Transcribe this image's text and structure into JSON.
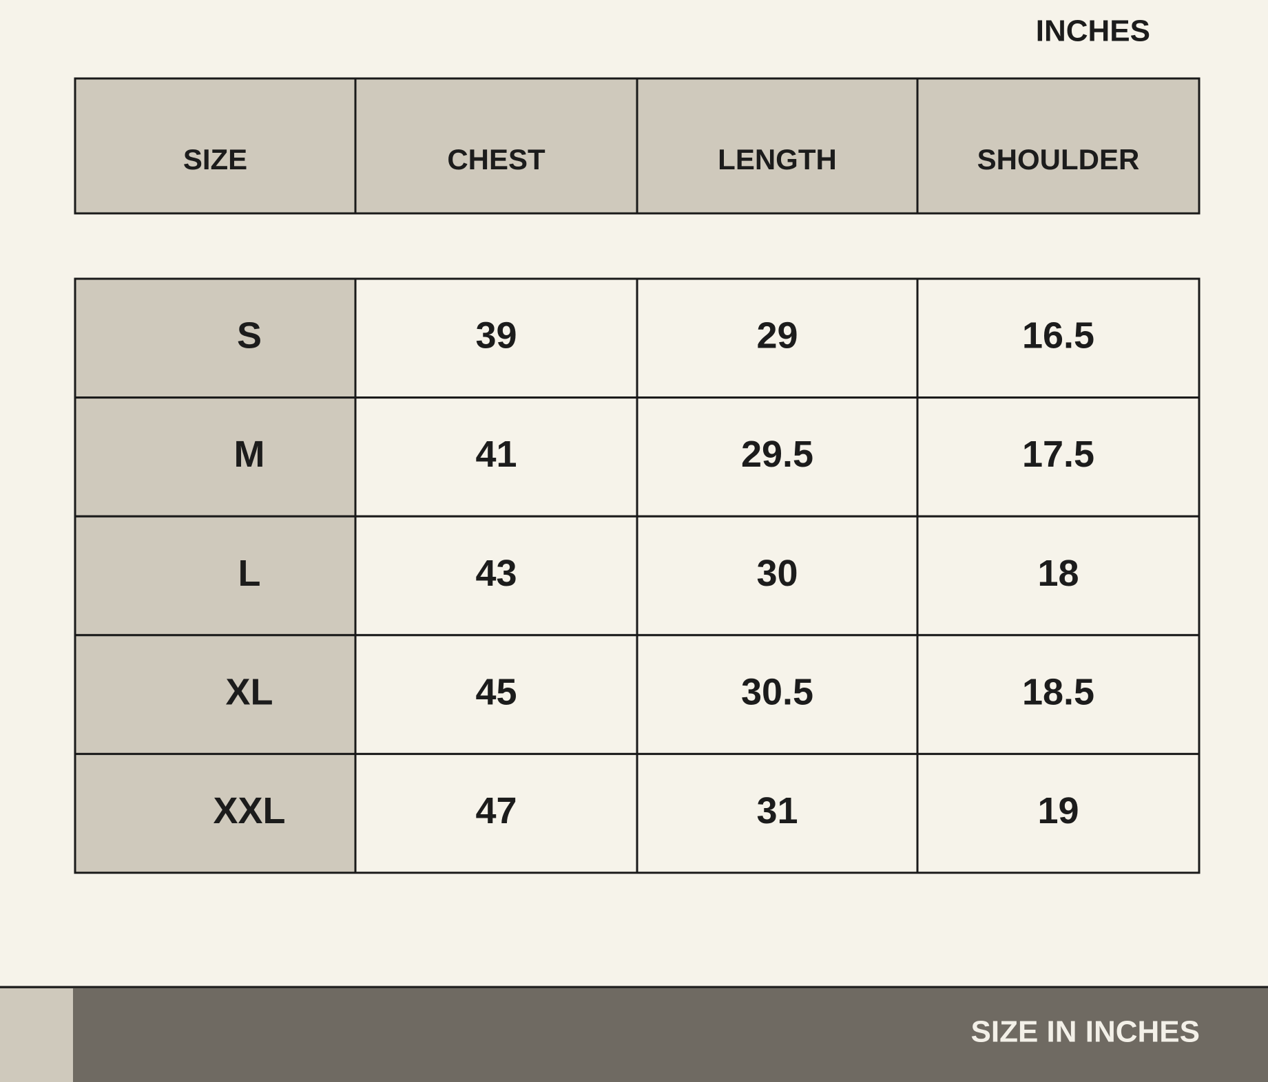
{
  "header": {
    "unit": "INCHES"
  },
  "table": {
    "columns": [
      "SIZE",
      "CHEST",
      "LENGTH",
      "SHOULDER"
    ],
    "rows": [
      [
        "S",
        39,
        29,
        16.5
      ],
      [
        "M",
        41,
        29.5,
        17.5
      ],
      [
        "L",
        43,
        30,
        18
      ],
      [
        "XL",
        45,
        30.5,
        18.5
      ],
      [
        "XXL",
        47,
        31,
        19
      ]
    ]
  },
  "footer": {
    "label": "SIZE IN INCHES"
  }
}
